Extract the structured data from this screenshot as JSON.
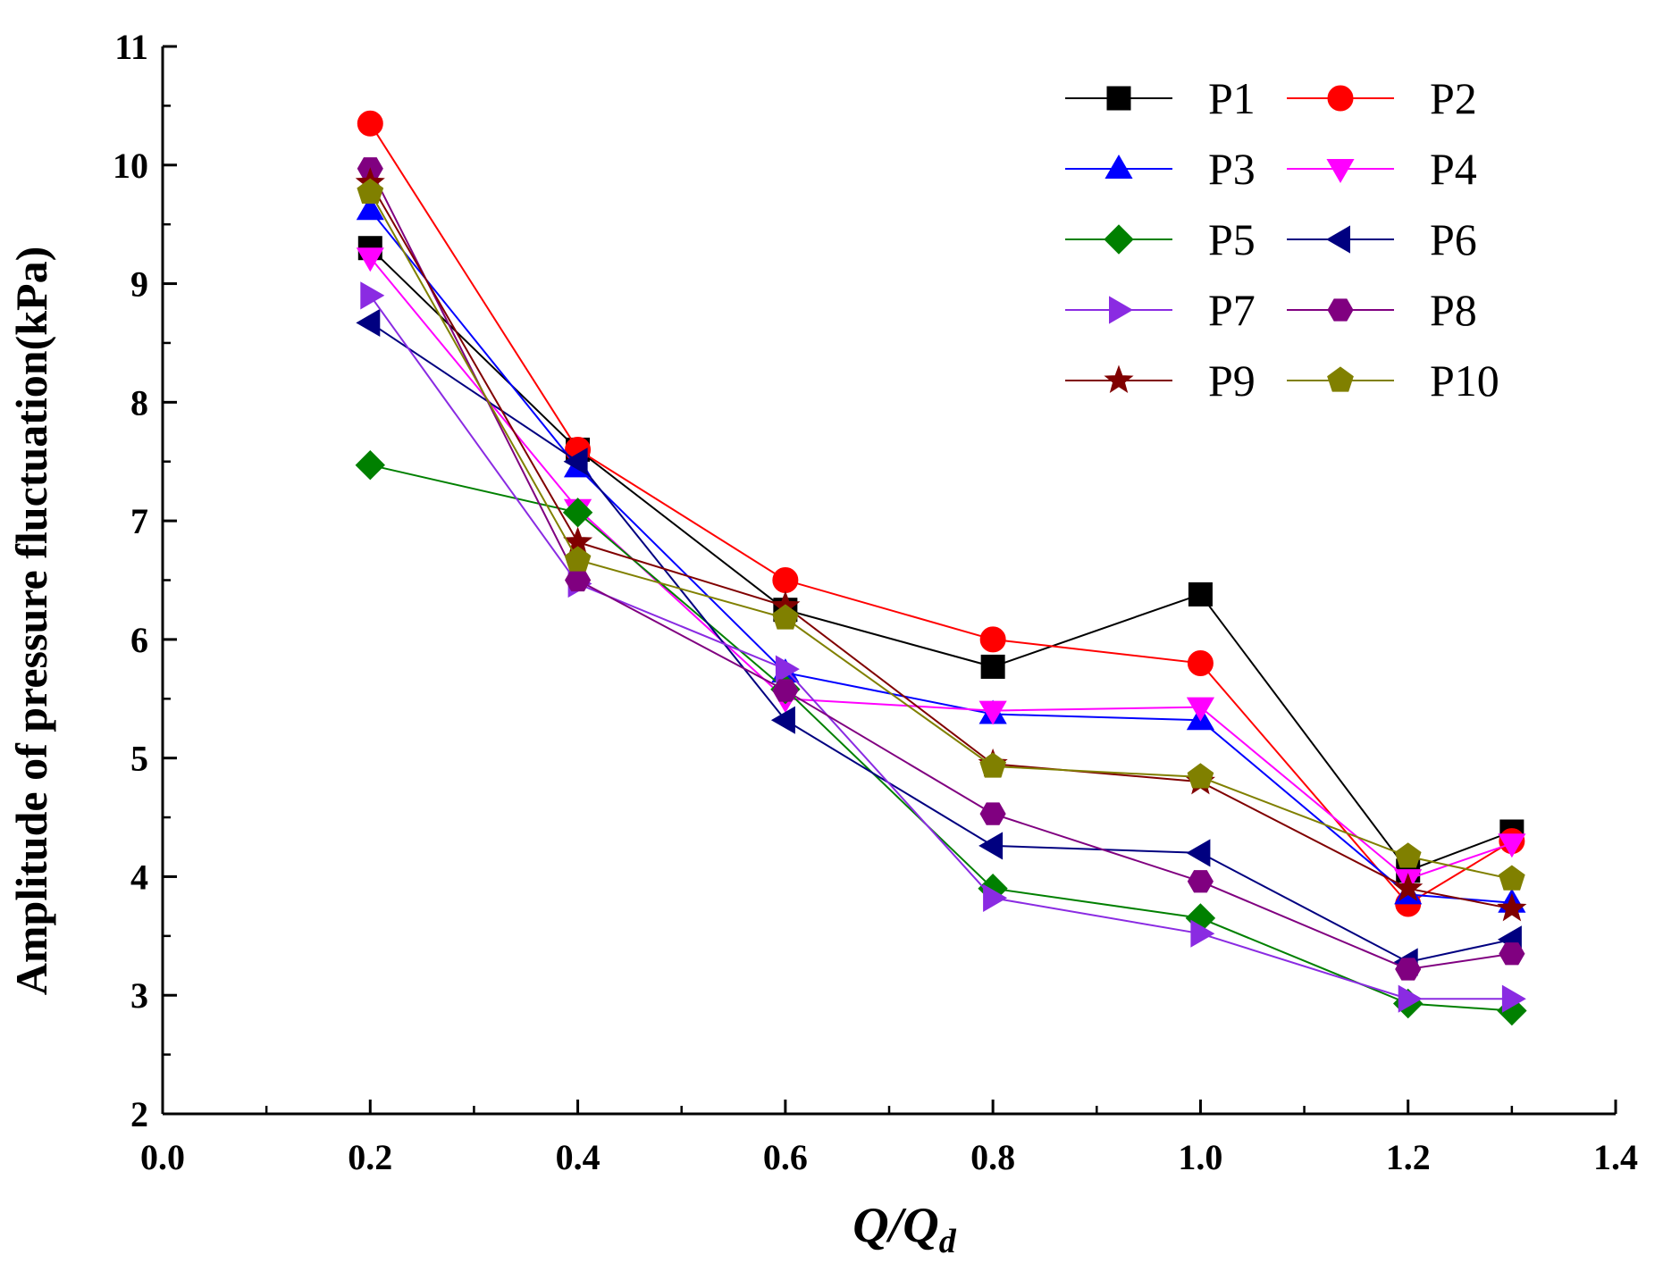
{
  "chart_data": {
    "type": "line",
    "title": "",
    "xlabel": "Q/Qd",
    "xlabel_main": "Q/Q",
    "xlabel_sub": "d",
    "ylabel": "Amplitude of pressure fluctuation(kPa)",
    "xlim": [
      0.0,
      1.4
    ],
    "ylim": [
      2,
      11
    ],
    "xticks": [
      0.0,
      0.2,
      0.4,
      0.6,
      0.8,
      1.0,
      1.2,
      1.4
    ],
    "xtick_labels": [
      "0.0",
      "0.2",
      "0.4",
      "0.6",
      "0.8",
      "1.0",
      "1.2",
      "1.4"
    ],
    "yticks": [
      2,
      3,
      4,
      5,
      6,
      7,
      8,
      9,
      10,
      11
    ],
    "ytick_labels": [
      "2",
      "3",
      "4",
      "5",
      "6",
      "7",
      "8",
      "9",
      "10",
      "11"
    ],
    "grid": false,
    "legend_position": "top-right",
    "x": [
      0.2,
      0.4,
      0.6,
      0.8,
      1.0,
      1.2,
      1.3
    ],
    "series": [
      {
        "name": "P1",
        "color": "#000000",
        "marker": "square",
        "values": [
          9.3,
          7.6,
          6.25,
          5.77,
          6.38,
          4.05,
          4.38
        ]
      },
      {
        "name": "P2",
        "color": "#ff0000",
        "marker": "circle",
        "values": [
          10.35,
          7.6,
          6.5,
          6.0,
          5.8,
          3.77,
          4.3
        ]
      },
      {
        "name": "P3",
        "color": "#0000ff",
        "marker": "triangle-up",
        "values": [
          9.62,
          7.45,
          5.72,
          5.37,
          5.32,
          3.85,
          3.78
        ]
      },
      {
        "name": "P4",
        "color": "#ff00ff",
        "marker": "triangle-down",
        "values": [
          9.22,
          7.1,
          5.5,
          5.4,
          5.43,
          3.98,
          4.28
        ]
      },
      {
        "name": "P5",
        "color": "#008000",
        "marker": "diamond",
        "values": [
          7.47,
          7.07,
          5.58,
          3.9,
          3.65,
          2.93,
          2.87
        ]
      },
      {
        "name": "P6",
        "color": "#000080",
        "marker": "triangle-left",
        "values": [
          8.67,
          7.5,
          5.32,
          4.26,
          4.2,
          3.28,
          3.47
        ]
      },
      {
        "name": "P7",
        "color": "#8a2be2",
        "marker": "triangle-right",
        "values": [
          8.9,
          6.47,
          5.75,
          3.82,
          3.52,
          2.97,
          2.97
        ]
      },
      {
        "name": "P8",
        "color": "#800080",
        "marker": "hexagon",
        "values": [
          9.97,
          6.5,
          5.57,
          4.53,
          3.96,
          3.22,
          3.35
        ]
      },
      {
        "name": "P9",
        "color": "#800000",
        "marker": "star",
        "values": [
          9.85,
          6.82,
          6.28,
          4.95,
          4.8,
          3.9,
          3.73
        ]
      },
      {
        "name": "P10",
        "color": "#808000",
        "marker": "pentagon",
        "values": [
          9.77,
          6.67,
          6.18,
          4.93,
          4.84,
          4.17,
          3.98
        ]
      }
    ]
  }
}
